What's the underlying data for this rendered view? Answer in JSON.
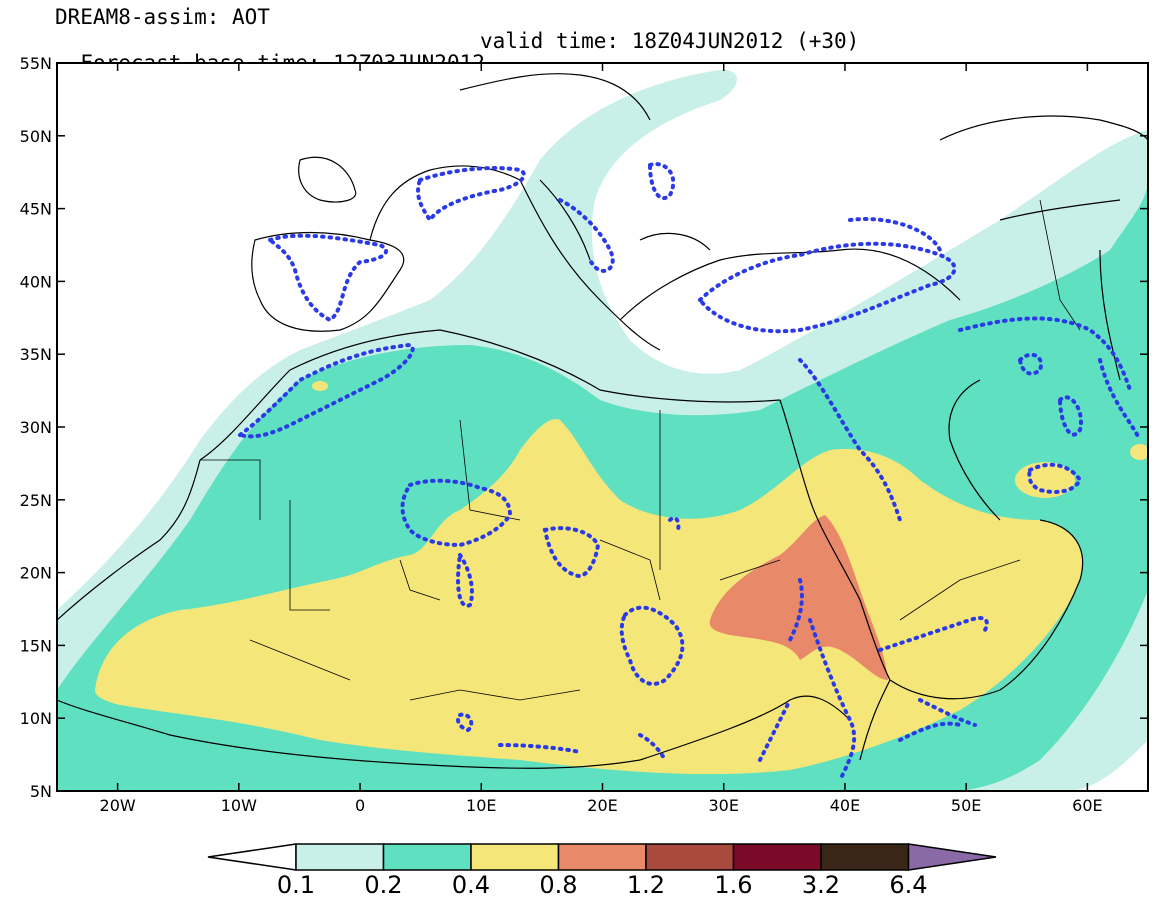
{
  "header": {
    "line1": "DREAM8-assim: AOT",
    "base_time": "Forecast base time: 12Z03JUN2012",
    "valid_time": "valid time: 18Z04JUN2012 (+30)"
  },
  "map": {
    "lon_range": [
      -25,
      65
    ],
    "lat_range": [
      5,
      55
    ],
    "lat_ticks": [
      "55N",
      "50N",
      "45N",
      "40N",
      "35N",
      "30N",
      "25N",
      "20N",
      "15N",
      "10N",
      "5N"
    ],
    "lon_ticks": [
      "20W",
      "10W",
      "0",
      "10E",
      "20E",
      "30E",
      "40E",
      "50E",
      "60E"
    ]
  },
  "colorbar": {
    "labels": [
      "0.1",
      "0.2",
      "0.4",
      "0.8",
      "1.2",
      "1.6",
      "3.2",
      "6.4"
    ],
    "colors": [
      "#ffffff",
      "#c8f0e8",
      "#5fe0c0",
      "#f5e67a",
      "#e8896a",
      "#a84a3e",
      "#7a0a28",
      "#3a2616",
      "#8a6aa6"
    ]
  }
}
